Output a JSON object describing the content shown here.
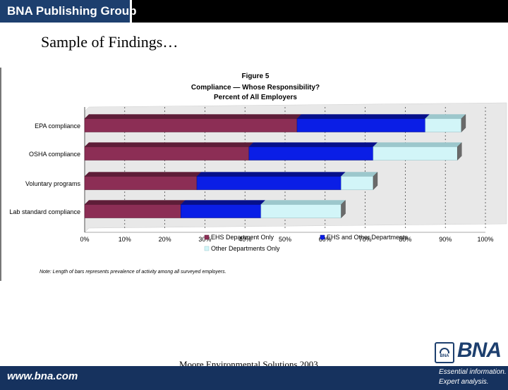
{
  "header": {
    "brand": "BNA Publishing Group"
  },
  "slide": {
    "title": "Sample of Findings…"
  },
  "footer": {
    "text": "Moore Environmental Solutions 2003",
    "url": "www.bna.com",
    "logo_text": "BNA",
    "emblem_text": "BNA",
    "tagline_line1": "Essential information.",
    "tagline_line2": "Expert analysis."
  },
  "colors": {
    "brand_navy": "#1d3f6e",
    "ehs_only": "#8c2e55",
    "ehs_and_other": "#0a1ee6",
    "other_only": "#d2f5f8"
  },
  "chart_data": {
    "type": "bar",
    "orientation": "horizontal",
    "stacked": true,
    "title": "Figure 5",
    "subtitle_lines": [
      "Compliance — Whose Responsibility?",
      "Percent of All Employers"
    ],
    "categories": [
      "EPA compliance",
      "OSHA compliance",
      "Voluntary programs",
      "Lab standard compliance"
    ],
    "series": [
      {
        "name": "EHS Department Only",
        "values": [
          53,
          41,
          28,
          24
        ]
      },
      {
        "name": "EHS and Other Departments",
        "values": [
          32,
          31,
          36,
          20
        ]
      },
      {
        "name": "Other Departments Only",
        "values": [
          9,
          21,
          8,
          20
        ]
      }
    ],
    "xlim": [
      0,
      100
    ],
    "x_ticks": [
      "0%",
      "10%",
      "20%",
      "30%",
      "40%",
      "50%",
      "60%",
      "70%",
      "80%",
      "90%",
      "100%"
    ],
    "grid": true,
    "legend_position": "bottom",
    "note": "Note: Length of bars represents prevalence of activity among all surveyed employers."
  }
}
